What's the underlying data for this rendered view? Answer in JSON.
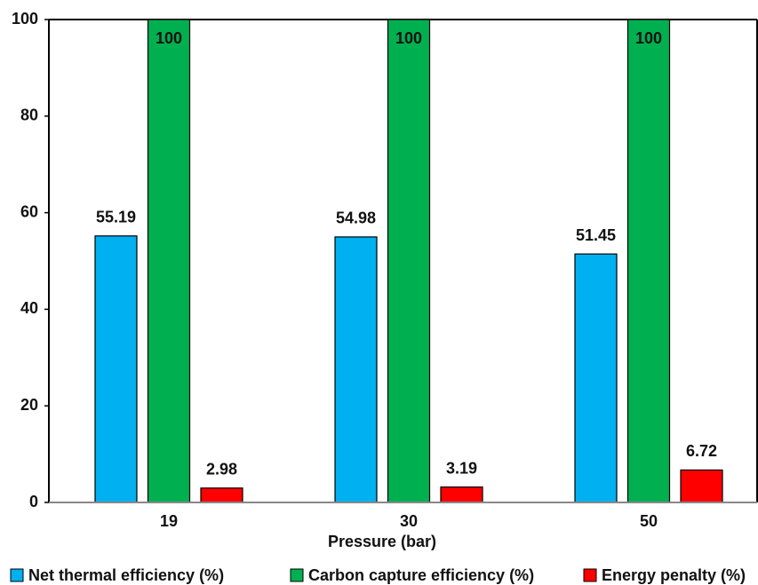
{
  "chart_data": {
    "type": "bar",
    "x_label": "Pressure (bar)",
    "categories": [
      "19",
      "30",
      "50"
    ],
    "series": [
      {
        "name": "Net thermal efficiency (%)",
        "color": "#00b0f0",
        "values": [
          55.19,
          54.98,
          51.45
        ]
      },
      {
        "name": "Carbon capture efficiency (%)",
        "color": "#00b050",
        "values": [
          100,
          100,
          100
        ]
      },
      {
        "name": "Energy penalty (%)",
        "color": "#ff0000",
        "values": [
          2.98,
          3.19,
          6.72
        ]
      }
    ],
    "ylim": [
      0,
      100
    ],
    "yticks": [
      0,
      20,
      40,
      60,
      80,
      100
    ],
    "grid": false
  }
}
